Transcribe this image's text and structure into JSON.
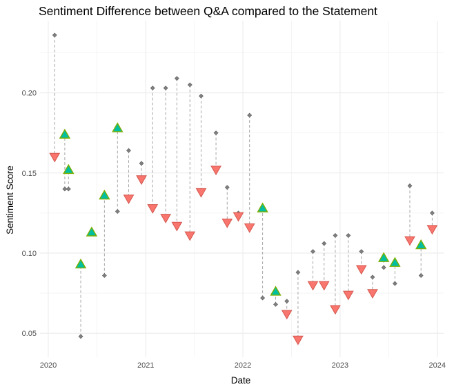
{
  "chart_data": {
    "type": "scatter",
    "title": "Sentiment Difference between Q&A compared to the Statement",
    "xlabel": "Date",
    "ylabel": "Sentiment Score",
    "x_ticks": [
      "2020",
      "2021",
      "2022",
      "2023",
      "2024"
    ],
    "y_ticks": [
      "0.05",
      "0.10",
      "0.15",
      "0.20"
    ],
    "x_range": [
      "2019-12-01",
      "2024-01-25"
    ],
    "ylim": [
      0.035,
      0.245
    ],
    "grid": true,
    "legend": "none",
    "colors": {
      "statement": "#808080",
      "qa_higher": "#00bfa0",
      "qa_higher_outline": "#7cae00",
      "qa_lower": "#f8766d",
      "qa_lower_outline": "#d4574e",
      "connector": "#a6a6a6"
    },
    "series": [
      {
        "date": "2020-01-25",
        "statement": 0.236,
        "qa": 0.16
      },
      {
        "date": "2020-03-03",
        "statement": 0.14,
        "qa": 0.174
      },
      {
        "date": "2020-03-17",
        "statement": 0.14,
        "qa": 0.152
      },
      {
        "date": "2020-05-02",
        "statement": 0.048,
        "qa": 0.093
      },
      {
        "date": "2020-06-12",
        "statement": 0.113,
        "qa": 0.113
      },
      {
        "date": "2020-07-30",
        "statement": 0.086,
        "qa": 0.136
      },
      {
        "date": "2020-09-17",
        "statement": 0.126,
        "qa": 0.178
      },
      {
        "date": "2020-10-29",
        "statement": 0.164,
        "qa": 0.134
      },
      {
        "date": "2020-12-16",
        "statement": 0.156,
        "qa": 0.146
      },
      {
        "date": "2021-01-27",
        "statement": 0.203,
        "qa": 0.128
      },
      {
        "date": "2021-03-17",
        "statement": 0.203,
        "qa": 0.122
      },
      {
        "date": "2021-04-28",
        "statement": 0.209,
        "qa": 0.117
      },
      {
        "date": "2021-06-16",
        "statement": 0.205,
        "qa": 0.111
      },
      {
        "date": "2021-07-28",
        "statement": 0.198,
        "qa": 0.138
      },
      {
        "date": "2021-09-22",
        "statement": 0.175,
        "qa": 0.152
      },
      {
        "date": "2021-11-03",
        "statement": 0.141,
        "qa": 0.119
      },
      {
        "date": "2021-12-15",
        "statement": 0.125,
        "qa": 0.123
      },
      {
        "date": "2022-01-26",
        "statement": 0.186,
        "qa": 0.116
      },
      {
        "date": "2022-03-16",
        "statement": 0.072,
        "qa": 0.128
      },
      {
        "date": "2022-05-04",
        "statement": 0.068,
        "qa": 0.076
      },
      {
        "date": "2022-06-15",
        "statement": 0.07,
        "qa": 0.062
      },
      {
        "date": "2022-07-27",
        "statement": 0.088,
        "qa": 0.046
      },
      {
        "date": "2022-09-21",
        "statement": 0.101,
        "qa": 0.08
      },
      {
        "date": "2022-11-02",
        "statement": 0.106,
        "qa": 0.08
      },
      {
        "date": "2022-12-14",
        "statement": 0.111,
        "qa": 0.065
      },
      {
        "date": "2023-02-01",
        "statement": 0.111,
        "qa": 0.074
      },
      {
        "date": "2023-03-22",
        "statement": 0.101,
        "qa": 0.09
      },
      {
        "date": "2023-05-03",
        "statement": 0.085,
        "qa": 0.075
      },
      {
        "date": "2023-06-14",
        "statement": 0.091,
        "qa": 0.097
      },
      {
        "date": "2023-07-26",
        "statement": 0.081,
        "qa": 0.094
      },
      {
        "date": "2023-09-20",
        "statement": 0.142,
        "qa": 0.108
      },
      {
        "date": "2023-11-01",
        "statement": 0.086,
        "qa": 0.105
      },
      {
        "date": "2023-12-13",
        "statement": 0.125,
        "qa": 0.115
      }
    ]
  }
}
